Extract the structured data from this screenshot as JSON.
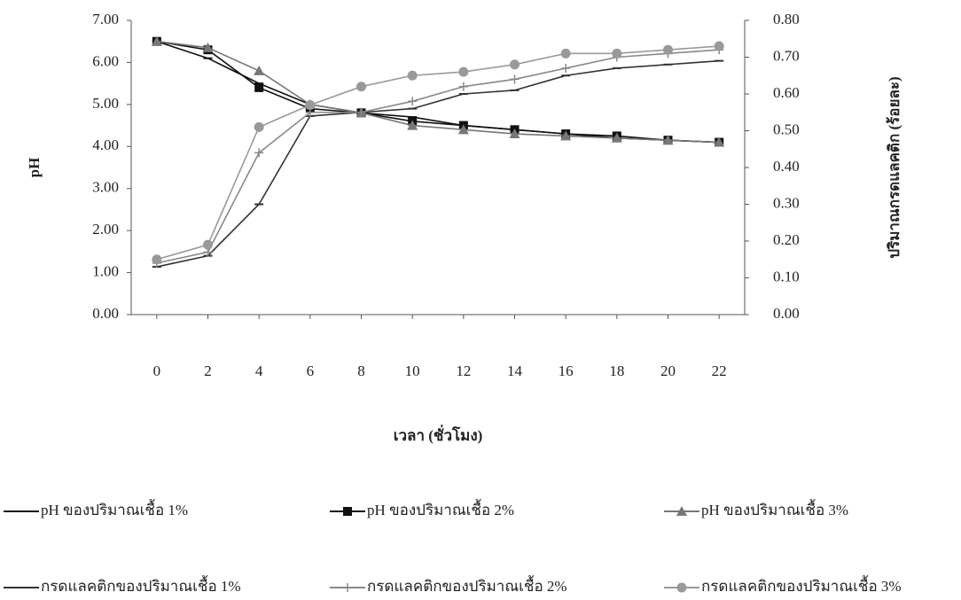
{
  "chart_data": {
    "type": "line",
    "x": [
      0,
      2,
      4,
      6,
      8,
      10,
      12,
      14,
      16,
      18,
      20,
      22
    ],
    "xlim": [
      -1,
      23
    ],
    "xticks": [
      0,
      2,
      4,
      6,
      8,
      10,
      12,
      14,
      16,
      18,
      20,
      22
    ],
    "x_label": "เวลา (ชั่วโมง)",
    "y_label": "pH",
    "y2_label": "ปริมาณกรดแลคติก (ร้อยละ)",
    "ylim": [
      0,
      7
    ],
    "yticks": [
      {
        "value": 0,
        "label": "0.00"
      },
      {
        "value": 1,
        "label": "1.00"
      },
      {
        "value": 2,
        "label": "2.00"
      },
      {
        "value": 3,
        "label": "3.00"
      },
      {
        "value": 4,
        "label": "4.00"
      },
      {
        "value": 5,
        "label": "5.00"
      },
      {
        "value": 6,
        "label": "6.00"
      },
      {
        "value": 7,
        "label": "7.00"
      }
    ],
    "y2lim": [
      0,
      0.8
    ],
    "y2ticks": [
      {
        "value": 0,
        "label": "0.00"
      },
      {
        "value": 0.1,
        "label": "0.10"
      },
      {
        "value": 0.2,
        "label": "0.20"
      },
      {
        "value": 0.3,
        "label": "0.30"
      },
      {
        "value": 0.4,
        "label": "0.40"
      },
      {
        "value": 0.5,
        "label": "0.50"
      },
      {
        "value": 0.6,
        "label": "0.60"
      },
      {
        "value": 0.7,
        "label": "0.70"
      },
      {
        "value": 0.8,
        "label": "0.80"
      }
    ],
    "series": [
      {
        "name": "pH ของปริมาณเชื้อ 1%",
        "color": "#111111",
        "marker": "dash",
        "values": [
          6.5,
          6.1,
          5.5,
          5.0,
          4.8,
          4.7,
          4.5,
          4.4,
          4.3,
          4.2,
          4.15,
          4.1
        ]
      },
      {
        "name": "pH ของปริมาณเชื้อ 2%",
        "color": "#111111",
        "marker": "square",
        "values": [
          6.5,
          6.3,
          5.4,
          4.9,
          4.8,
          4.6,
          4.5,
          4.4,
          4.3,
          4.25,
          4.15,
          4.1
        ]
      },
      {
        "name": "pH ของปริมาณเชื้อ 3%",
        "color": "#777777",
        "marker": "triangle",
        "values": [
          6.5,
          6.35,
          5.8,
          5.0,
          4.8,
          4.5,
          4.4,
          4.3,
          4.25,
          4.2,
          4.15,
          4.1
        ]
      },
      {
        "name": "กรดแลคติกของปริมาณเชื้อ 1%",
        "color": "#333333",
        "marker": "dash",
        "axis": "y2",
        "values": [
          0.13,
          0.16,
          0.3,
          0.54,
          0.55,
          0.56,
          0.6,
          0.61,
          0.65,
          0.67,
          0.68,
          0.69
        ]
      },
      {
        "name": "กรดแลคติกของปริมาณเชื้อ 2%",
        "color": "#888888",
        "marker": "cross",
        "axis": "y2",
        "values": [
          0.14,
          0.17,
          0.44,
          0.55,
          0.55,
          0.58,
          0.62,
          0.64,
          0.67,
          0.7,
          0.71,
          0.72
        ]
      },
      {
        "name": "กรดแลคติกของปริมาณเชื้อ 3%",
        "color": "#999999",
        "marker": "circle",
        "axis": "y2",
        "values": [
          0.15,
          0.19,
          0.51,
          0.57,
          0.62,
          0.65,
          0.66,
          0.68,
          0.71,
          0.71,
          0.72,
          0.73
        ]
      }
    ]
  }
}
